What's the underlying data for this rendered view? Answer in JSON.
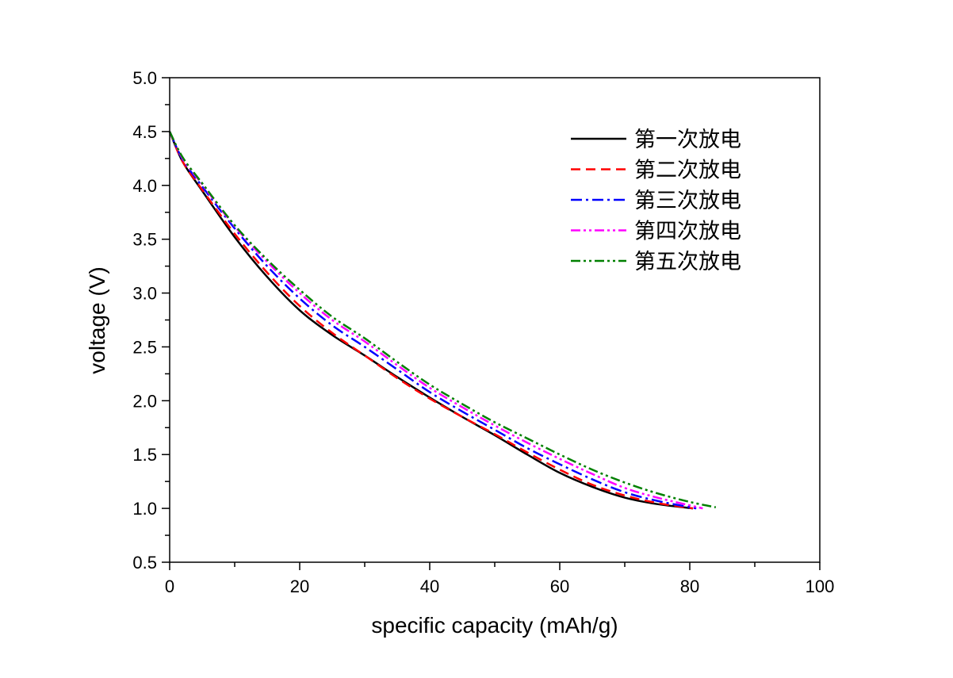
{
  "chart_data": {
    "type": "line",
    "title": "",
    "xlabel": "specific capacity (mAh/g)",
    "ylabel": "voltage (V)",
    "xlim": [
      0,
      100
    ],
    "ylim": [
      0.5,
      5.0
    ],
    "xticks": [
      "0",
      "20",
      "40",
      "60",
      "80",
      "100"
    ],
    "yticks": [
      "0.5",
      "1.0",
      "1.5",
      "2.0",
      "2.5",
      "3.0",
      "3.5",
      "4.0",
      "4.5",
      "5.0"
    ],
    "grid": false,
    "legend_position": "top-right",
    "series": [
      {
        "name": "第一次放电",
        "color": "#000000",
        "dash": "solid",
        "x": [
          0,
          2,
          5,
          10,
          15,
          20,
          25,
          30,
          35,
          40,
          45,
          50,
          55,
          60,
          65,
          70,
          75,
          80.5
        ],
        "y": [
          4.5,
          4.22,
          3.95,
          3.52,
          3.15,
          2.84,
          2.61,
          2.42,
          2.22,
          2.03,
          1.85,
          1.68,
          1.5,
          1.33,
          1.2,
          1.1,
          1.04,
          1.0
        ]
      },
      {
        "name": "第二次放电",
        "color": "#ff0000",
        "dash": "dash",
        "x": [
          0,
          2,
          5,
          10,
          15,
          20,
          25,
          30,
          35,
          40,
          45,
          50,
          55,
          60,
          65,
          70,
          75,
          80.5
        ],
        "y": [
          4.5,
          4.22,
          3.96,
          3.55,
          3.19,
          2.88,
          2.63,
          2.42,
          2.21,
          2.02,
          1.85,
          1.69,
          1.52,
          1.36,
          1.22,
          1.12,
          1.05,
          1.0
        ]
      },
      {
        "name": "第三次放电",
        "color": "#0000ff",
        "dash": "dashdot",
        "x": [
          0,
          2,
          5,
          10,
          15,
          20,
          25,
          30,
          35,
          40,
          45,
          50,
          55,
          60,
          65,
          70,
          75,
          81
        ],
        "y": [
          4.5,
          4.24,
          3.99,
          3.6,
          3.25,
          2.95,
          2.7,
          2.5,
          2.29,
          2.08,
          1.9,
          1.73,
          1.56,
          1.41,
          1.27,
          1.15,
          1.07,
          1.0
        ]
      },
      {
        "name": "第四次放电",
        "color": "#ff00ff",
        "dash": "dashdotdot",
        "x": [
          0,
          2,
          5,
          10,
          15,
          20,
          25,
          30,
          35,
          40,
          45,
          50,
          55,
          60,
          65,
          70,
          75,
          82
        ],
        "y": [
          4.5,
          4.25,
          4.01,
          3.62,
          3.29,
          3.0,
          2.75,
          2.55,
          2.33,
          2.12,
          1.94,
          1.77,
          1.61,
          1.46,
          1.32,
          1.19,
          1.1,
          1.0
        ]
      },
      {
        "name": "第五次放电",
        "color": "#008000",
        "dash": "dashdotdot",
        "x": [
          0,
          2,
          5,
          10,
          15,
          20,
          25,
          30,
          35,
          40,
          45,
          50,
          55,
          60,
          65,
          70,
          75,
          80,
          84
        ],
        "y": [
          4.5,
          4.26,
          4.02,
          3.63,
          3.31,
          3.03,
          2.78,
          2.58,
          2.36,
          2.15,
          1.97,
          1.8,
          1.65,
          1.5,
          1.36,
          1.24,
          1.14,
          1.06,
          1.01
        ]
      }
    ]
  }
}
